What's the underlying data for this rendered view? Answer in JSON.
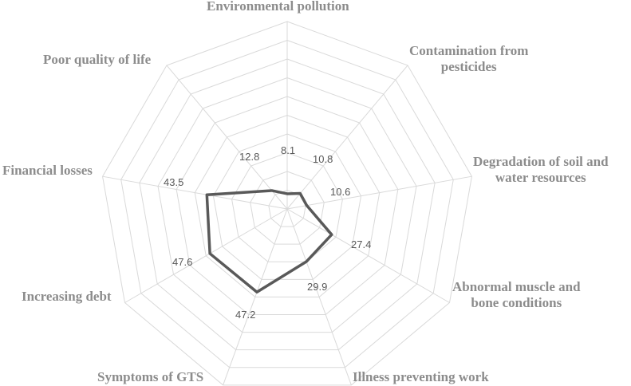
{
  "chart_data": {
    "type": "radar",
    "title": "",
    "categories": [
      "Environmental pollution",
      "Contamination from pesticides",
      "Degradation of soil and water resources",
      "Abnormal muscle and bone conditions",
      "Illness preventing work",
      "Symptoms of GTS",
      "Increasing debt",
      "Financial losses",
      "Poor quality of life"
    ],
    "values": [
      8.1,
      10.8,
      10.6,
      27.4,
      29.9,
      47.2,
      47.6,
      43.5,
      12.8
    ],
    "value_labels": [
      "8.1",
      "10.8",
      "10.6",
      "27.4",
      "29.9",
      "47.2",
      "47.6",
      "43.5",
      "12.8"
    ],
    "rlim": [
      0,
      100
    ],
    "gridlines": 10,
    "colors": {
      "series": "#595959",
      "grid": "#d9d9d9",
      "label": "#8c8c8c",
      "value_label": "#595959"
    }
  },
  "labels": {
    "environmental_pollution": "Environmental pollution",
    "contamination_line1": "Contamination from",
    "contamination_line2": "pesticides",
    "degradation_line1": "Degradation of soil and",
    "degradation_line2": "water resources",
    "abnormal_line1": "Abnormal muscle and",
    "abnormal_line2": "bone conditions",
    "illness": "Illness preventing work",
    "symptoms": "Symptoms of GTS",
    "debt": "Increasing debt",
    "financial": "Financial losses",
    "quality": "Poor quality of life"
  }
}
